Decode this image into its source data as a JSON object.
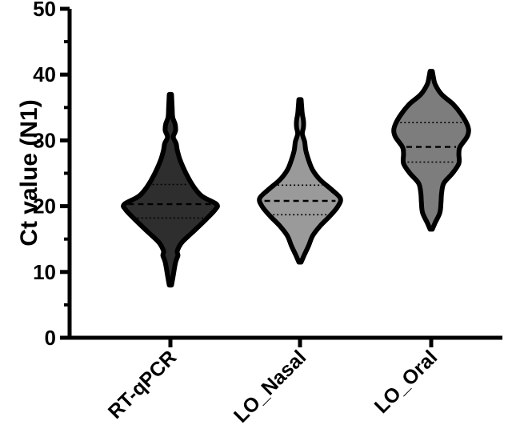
{
  "chart_data": {
    "type": "violin",
    "title": "",
    "xlabel": "",
    "ylabel": "Ct value (N1)",
    "ylim": [
      0,
      50
    ],
    "yticks": [
      0,
      10,
      20,
      30,
      40,
      50
    ],
    "grid": false,
    "legend": "none",
    "categories": [
      "RT-qPCR",
      "LO_Nasal",
      "LO_Oral"
    ],
    "series": [
      {
        "category": "RT-qPCR",
        "color": "#2e2e2e",
        "min": 8.0,
        "max": 37.0,
        "q1": 18.2,
        "median": 20.3,
        "q3": 23.3,
        "density": [
          [
            8.0,
            0.02
          ],
          [
            9.5,
            0.05
          ],
          [
            11.5,
            0.09
          ],
          [
            12.5,
            0.13
          ],
          [
            13.2,
            0.12
          ],
          [
            14.5,
            0.2
          ],
          [
            16,
            0.38
          ],
          [
            18,
            0.62
          ],
          [
            19.5,
            0.78
          ],
          [
            20.3,
            0.8
          ],
          [
            21.5,
            0.55
          ],
          [
            23,
            0.4
          ],
          [
            25,
            0.27
          ],
          [
            27,
            0.17
          ],
          [
            28.5,
            0.12
          ],
          [
            29.5,
            0.1
          ],
          [
            30.5,
            0.05
          ],
          [
            31.5,
            0.09
          ],
          [
            32.5,
            0.08
          ],
          [
            33.5,
            0.04
          ],
          [
            35,
            0.03
          ],
          [
            37,
            0.02
          ]
        ]
      },
      {
        "category": "LO_Nasal",
        "color": "#9a9a9a",
        "min": 11.5,
        "max": 36.2,
        "q1": 18.7,
        "median": 20.8,
        "q3": 23.2,
        "density": [
          [
            11.5,
            0.02
          ],
          [
            12.5,
            0.07
          ],
          [
            14,
            0.15
          ],
          [
            15.5,
            0.22
          ],
          [
            17,
            0.35
          ],
          [
            18.5,
            0.52
          ],
          [
            20,
            0.66
          ],
          [
            21.2,
            0.7
          ],
          [
            22.5,
            0.55
          ],
          [
            24,
            0.35
          ],
          [
            25.5,
            0.22
          ],
          [
            27,
            0.15
          ],
          [
            28.5,
            0.1
          ],
          [
            29.8,
            0.08
          ],
          [
            31,
            0.04
          ],
          [
            32,
            0.06
          ],
          [
            33,
            0.06
          ],
          [
            34,
            0.04
          ],
          [
            35,
            0.03
          ],
          [
            36.2,
            0.02
          ]
        ]
      },
      {
        "category": "LO_Oral",
        "color": "#7d7d7d",
        "min": 16.5,
        "max": 40.5,
        "q1": 26.7,
        "median": 29.0,
        "q3": 32.7,
        "density": [
          [
            16.5,
            0.02
          ],
          [
            17.5,
            0.07
          ],
          [
            19,
            0.15
          ],
          [
            20.5,
            0.17
          ],
          [
            22,
            0.18
          ],
          [
            23.5,
            0.22
          ],
          [
            25,
            0.37
          ],
          [
            26.5,
            0.48
          ],
          [
            28,
            0.48
          ],
          [
            29,
            0.5
          ],
          [
            30.5,
            0.62
          ],
          [
            31.5,
            0.65
          ],
          [
            32.5,
            0.62
          ],
          [
            34,
            0.52
          ],
          [
            35.5,
            0.38
          ],
          [
            37,
            0.18
          ],
          [
            38.5,
            0.07
          ],
          [
            39.5,
            0.04
          ],
          [
            40.5,
            0.02
          ]
        ]
      }
    ]
  }
}
